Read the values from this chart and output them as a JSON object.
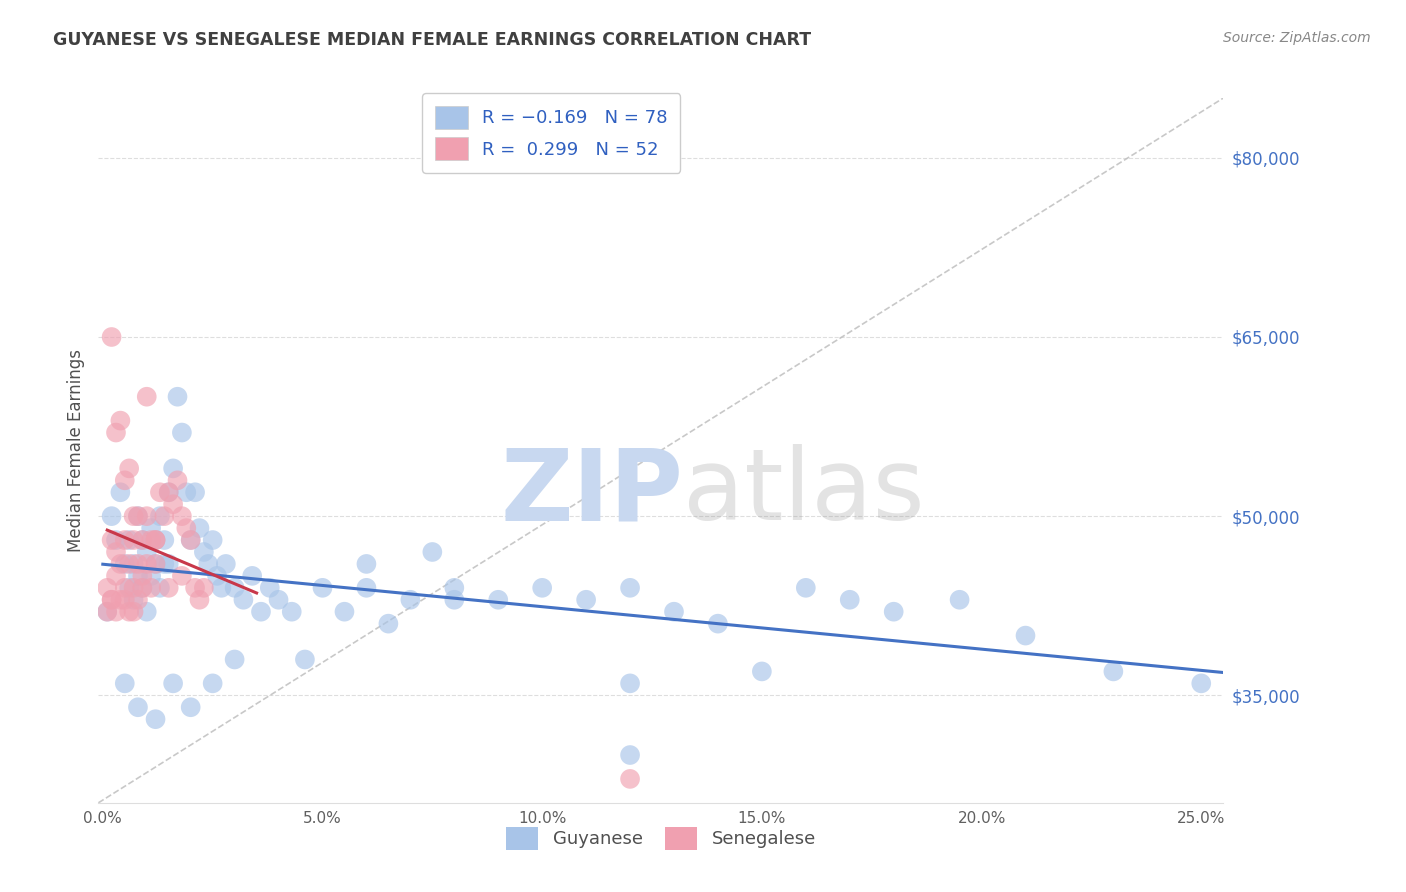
{
  "title": "GUYANESE VS SENEGALESE MEDIAN FEMALE EARNINGS CORRELATION CHART",
  "source": "Source: ZipAtlas.com",
  "ylabel": "Median Female Earnings",
  "yticks_labels": [
    "$35,000",
    "$50,000",
    "$65,000",
    "$80,000"
  ],
  "yticks_values": [
    35000,
    50000,
    65000,
    80000
  ],
  "ymin": 26000,
  "ymax": 85000,
  "xmin": -0.001,
  "xmax": 0.255,
  "legend_label_blue": "Guyanese",
  "legend_label_pink": "Senegalese",
  "R_blue": -0.169,
  "N_blue": 78,
  "R_pink": 0.299,
  "N_pink": 52,
  "color_blue": "#A8C4E8",
  "color_pink": "#F0A0B0",
  "color_blue_line": "#4472C4",
  "color_pink_line": "#C8384A",
  "color_diag_line": "#BBBBBB",
  "watermark_zip_color": "#C8D8F0",
  "watermark_atlas_color": "#909090",
  "background_color": "#FFFFFF",
  "grid_color": "#DEDEDE",
  "title_color": "#404040",
  "source_color": "#888888",
  "blue_scatter_x": [
    0.001,
    0.002,
    0.003,
    0.004,
    0.005,
    0.006,
    0.006,
    0.007,
    0.007,
    0.008,
    0.008,
    0.009,
    0.009,
    0.01,
    0.01,
    0.011,
    0.011,
    0.012,
    0.012,
    0.013,
    0.013,
    0.014,
    0.014,
    0.015,
    0.015,
    0.016,
    0.017,
    0.018,
    0.019,
    0.02,
    0.021,
    0.022,
    0.023,
    0.024,
    0.025,
    0.026,
    0.027,
    0.028,
    0.03,
    0.032,
    0.034,
    0.036,
    0.038,
    0.04,
    0.043,
    0.046,
    0.05,
    0.055,
    0.06,
    0.065,
    0.07,
    0.075,
    0.08,
    0.09,
    0.1,
    0.11,
    0.12,
    0.13,
    0.14,
    0.15,
    0.16,
    0.17,
    0.18,
    0.195,
    0.21,
    0.23,
    0.25,
    0.06,
    0.08,
    0.12,
    0.005,
    0.008,
    0.012,
    0.016,
    0.02,
    0.025,
    0.03,
    0.12
  ],
  "blue_scatter_y": [
    42000,
    50000,
    48000,
    52000,
    46000,
    44000,
    48000,
    46000,
    43000,
    50000,
    45000,
    48000,
    44000,
    47000,
    42000,
    49000,
    45000,
    48000,
    46000,
    50000,
    44000,
    48000,
    46000,
    52000,
    46000,
    54000,
    60000,
    57000,
    52000,
    48000,
    52000,
    49000,
    47000,
    46000,
    48000,
    45000,
    44000,
    46000,
    44000,
    43000,
    45000,
    42000,
    44000,
    43000,
    42000,
    38000,
    44000,
    42000,
    44000,
    41000,
    43000,
    47000,
    44000,
    43000,
    44000,
    43000,
    36000,
    42000,
    41000,
    37000,
    44000,
    43000,
    42000,
    43000,
    40000,
    37000,
    36000,
    46000,
    43000,
    44000,
    36000,
    34000,
    33000,
    36000,
    34000,
    36000,
    38000,
    30000
  ],
  "pink_scatter_x": [
    0.001,
    0.001,
    0.002,
    0.002,
    0.003,
    0.003,
    0.004,
    0.004,
    0.005,
    0.005,
    0.006,
    0.006,
    0.007,
    0.007,
    0.008,
    0.008,
    0.009,
    0.009,
    0.01,
    0.01,
    0.011,
    0.011,
    0.012,
    0.012,
    0.013,
    0.014,
    0.015,
    0.016,
    0.017,
    0.018,
    0.019,
    0.02,
    0.021,
    0.022,
    0.023,
    0.002,
    0.003,
    0.004,
    0.005,
    0.006,
    0.007,
    0.008,
    0.009,
    0.01,
    0.012,
    0.015,
    0.018,
    0.002,
    0.003,
    0.005,
    0.007,
    0.12
  ],
  "pink_scatter_y": [
    42000,
    44000,
    43000,
    48000,
    45000,
    47000,
    43000,
    46000,
    44000,
    48000,
    42000,
    46000,
    44000,
    50000,
    46000,
    43000,
    48000,
    44000,
    46000,
    50000,
    48000,
    44000,
    48000,
    46000,
    52000,
    50000,
    52000,
    51000,
    53000,
    50000,
    49000,
    48000,
    44000,
    43000,
    44000,
    65000,
    57000,
    58000,
    53000,
    54000,
    48000,
    50000,
    45000,
    60000,
    48000,
    44000,
    45000,
    43000,
    42000,
    43000,
    42000,
    28000
  ]
}
